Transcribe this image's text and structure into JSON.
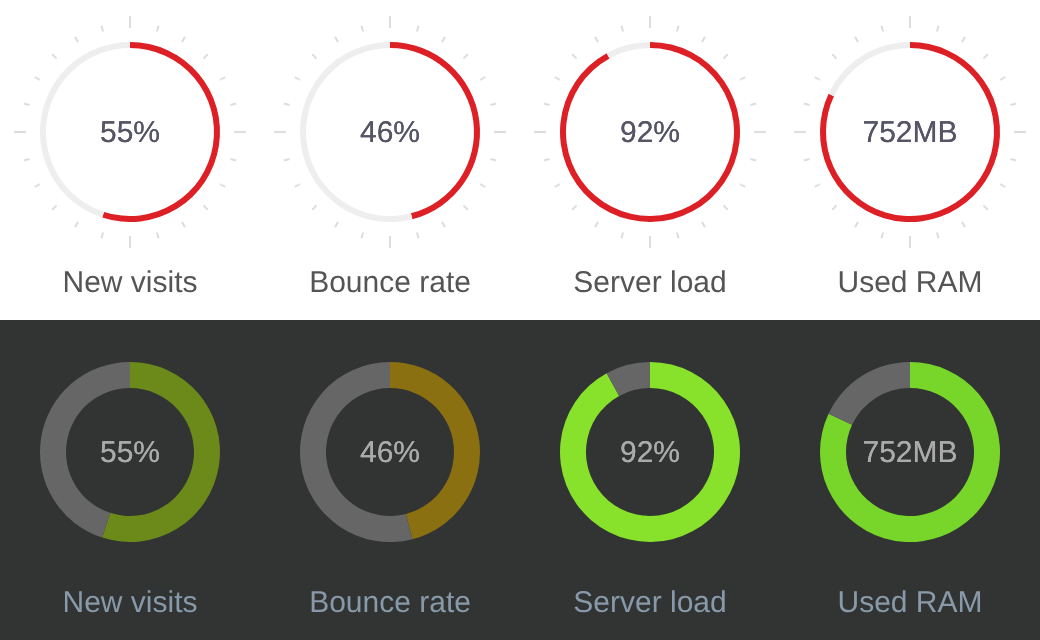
{
  "chart_data": [
    {
      "type": "donut",
      "title": "New visits",
      "categories": [
        null,
        null
      ],
      "values": [
        55,
        45
      ],
      "colors": [
        "#dd1f26",
        "#eeeeee"
      ],
      "annotations": [
        "55%"
      ]
    },
    {
      "type": "donut",
      "title": "Bounce rate",
      "categories": [
        null,
        null
      ],
      "values": [
        46,
        54
      ],
      "colors": [
        "#dd1f26",
        "#eeeeee"
      ],
      "annotations": [
        "46%"
      ]
    },
    {
      "type": "donut",
      "title": "Server load",
      "categories": [
        null,
        null
      ],
      "values": [
        92,
        8
      ],
      "colors": [
        "#dd1f26",
        "#eeeeee"
      ],
      "annotations": [
        "92%"
      ]
    },
    {
      "type": "donut",
      "title": "Used RAM",
      "categories": [
        null,
        null
      ],
      "values": [
        82,
        18
      ],
      "colors": [
        "#dd1f26",
        "#eeeeee"
      ],
      "annotations": [
        "752MB"
      ]
    },
    {
      "type": "donut",
      "title": "New visits",
      "categories": [
        null,
        null
      ],
      "values": [
        55,
        45
      ],
      "colors": [
        "#6b8a1a",
        "#666666"
      ],
      "annotations": [
        "55%"
      ]
    },
    {
      "type": "donut",
      "title": "Bounce rate",
      "categories": [
        null,
        null
      ],
      "values": [
        46,
        54
      ],
      "colors": [
        "#8a7010",
        "#666666"
      ],
      "annotations": [
        "46%"
      ]
    },
    {
      "type": "donut",
      "title": "Server load",
      "categories": [
        null,
        null
      ],
      "values": [
        92,
        8
      ],
      "colors": [
        "#88e22c",
        "#666666"
      ],
      "annotations": [
        "92%"
      ]
    },
    {
      "type": "donut",
      "title": "Used RAM",
      "categories": [
        null,
        null
      ],
      "values": [
        82,
        18
      ],
      "colors": [
        "#78d62a",
        "#666666"
      ],
      "annotations": [
        "752MB"
      ]
    }
  ]
}
